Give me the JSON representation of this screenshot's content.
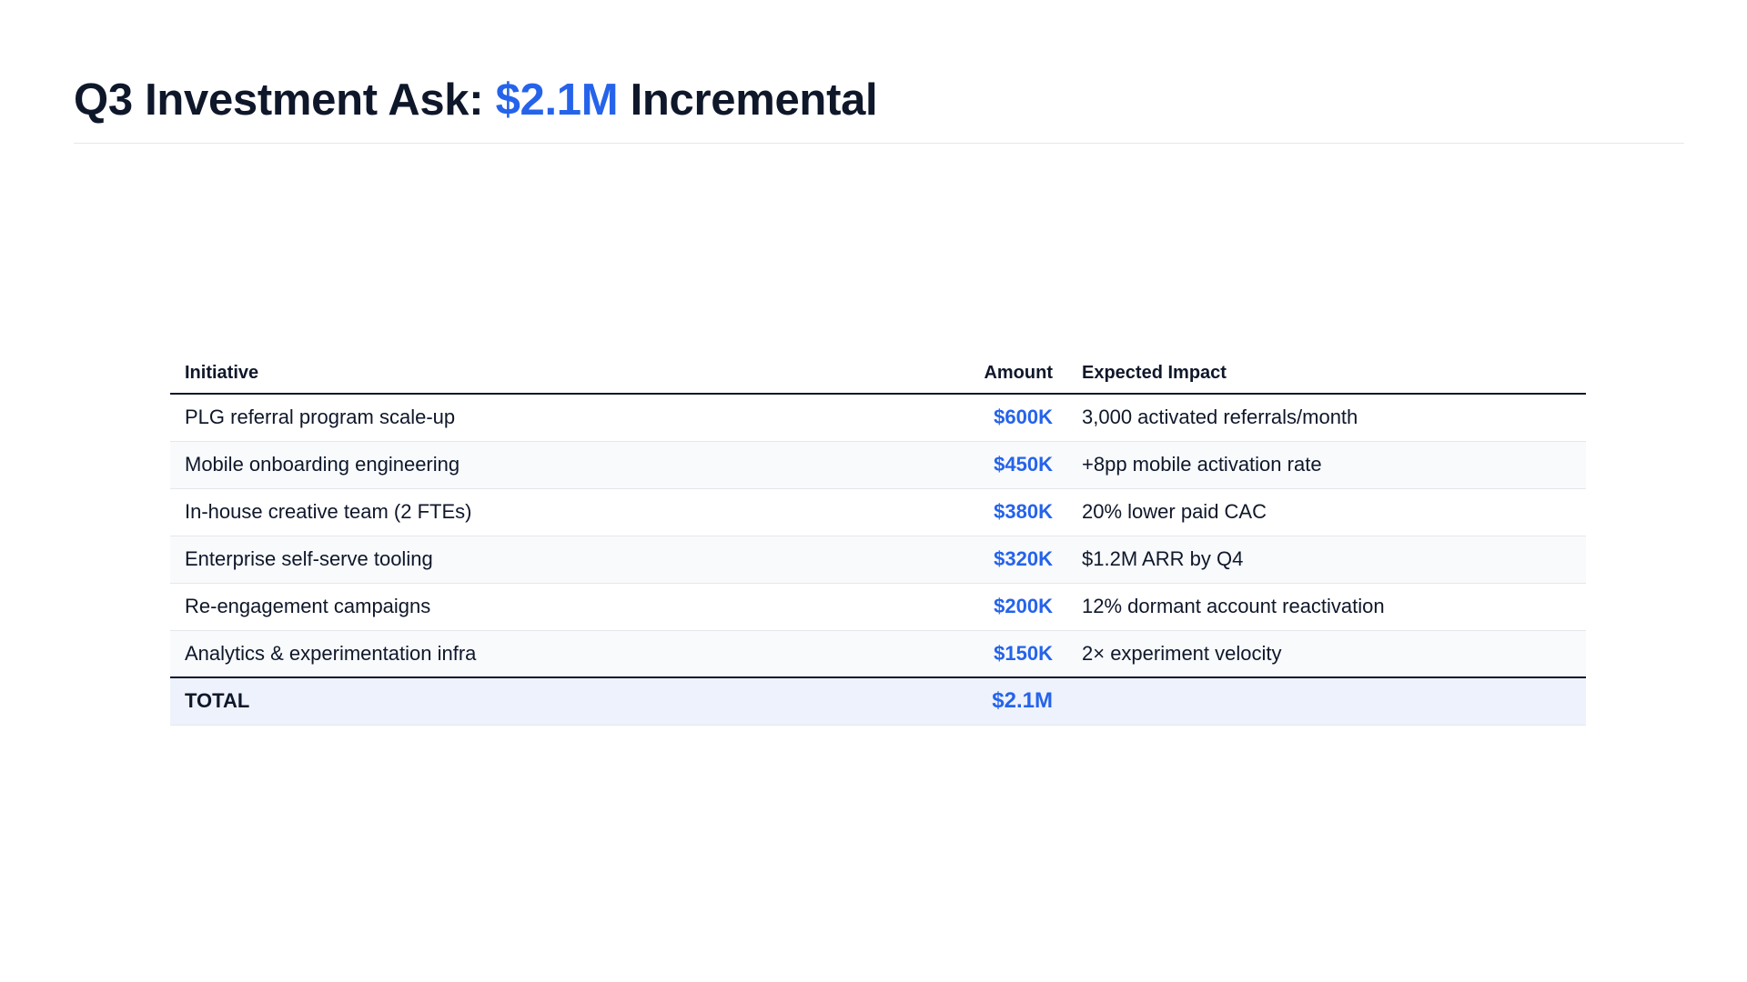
{
  "slide": {
    "title_prefix": "Q3 Investment Ask: ",
    "title_accent": "$2.1M",
    "title_suffix": " Incremental"
  },
  "table": {
    "headers": {
      "initiative": "Initiative",
      "amount": "Amount",
      "impact": "Expected Impact"
    },
    "rows": [
      {
        "initiative": "PLG referral program scale-up",
        "amount": "$600K",
        "impact": "3,000 activated referrals/month"
      },
      {
        "initiative": "Mobile onboarding engineering",
        "amount": "$450K",
        "impact": "+8pp mobile activation rate"
      },
      {
        "initiative": "In-house creative team (2 FTEs)",
        "amount": "$380K",
        "impact": "20% lower paid CAC"
      },
      {
        "initiative": "Enterprise self-serve tooling",
        "amount": "$320K",
        "impact": "$1.2M ARR by Q4"
      },
      {
        "initiative": "Re-engagement campaigns",
        "amount": "$200K",
        "impact": "12% dormant account reactivation"
      },
      {
        "initiative": "Analytics & experimentation infra",
        "amount": "$150K",
        "impact": "2× experiment velocity"
      }
    ],
    "total": {
      "label": "TOTAL",
      "amount": "$2.1M",
      "impact": ""
    }
  },
  "colors": {
    "accent": "#2563eb",
    "text": "#0f172a",
    "row_alt": "#f8fafc",
    "total_bg": "#eef2fc"
  }
}
